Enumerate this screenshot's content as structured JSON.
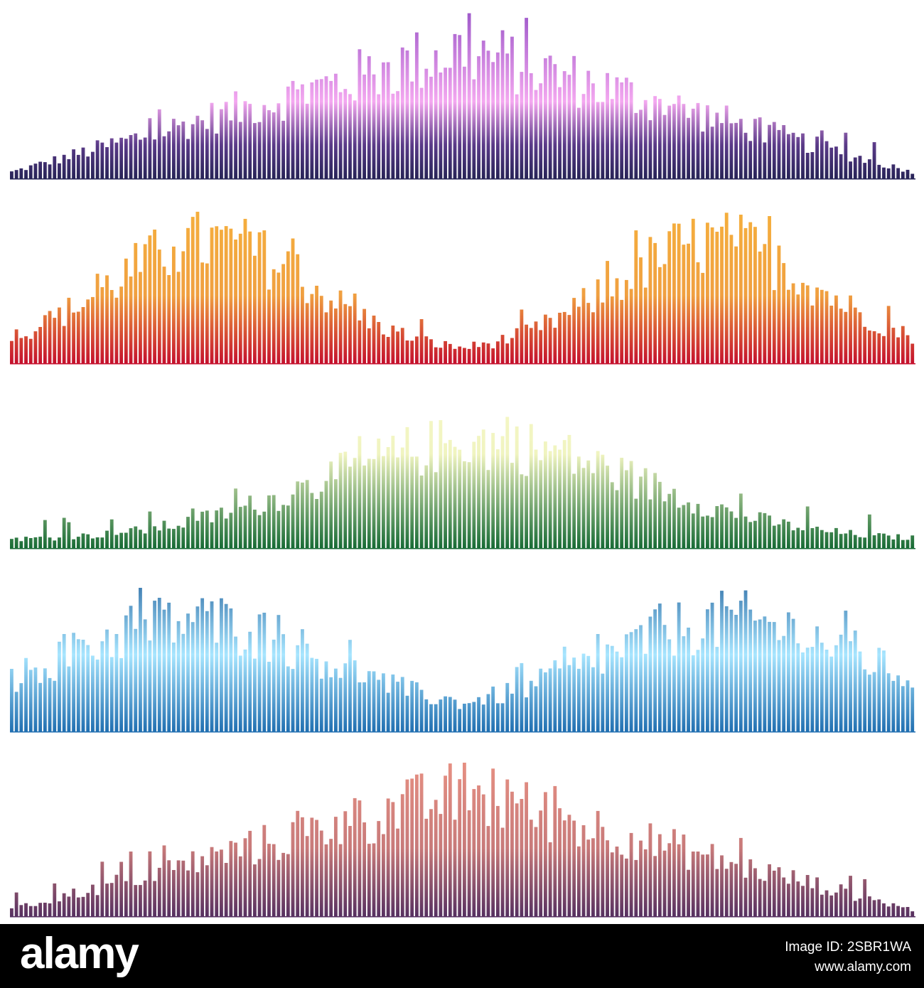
{
  "footer": {
    "logo": "alamy",
    "image_id": "Image ID: 2SBR1WA",
    "url": "www.alamy.com"
  }
}
